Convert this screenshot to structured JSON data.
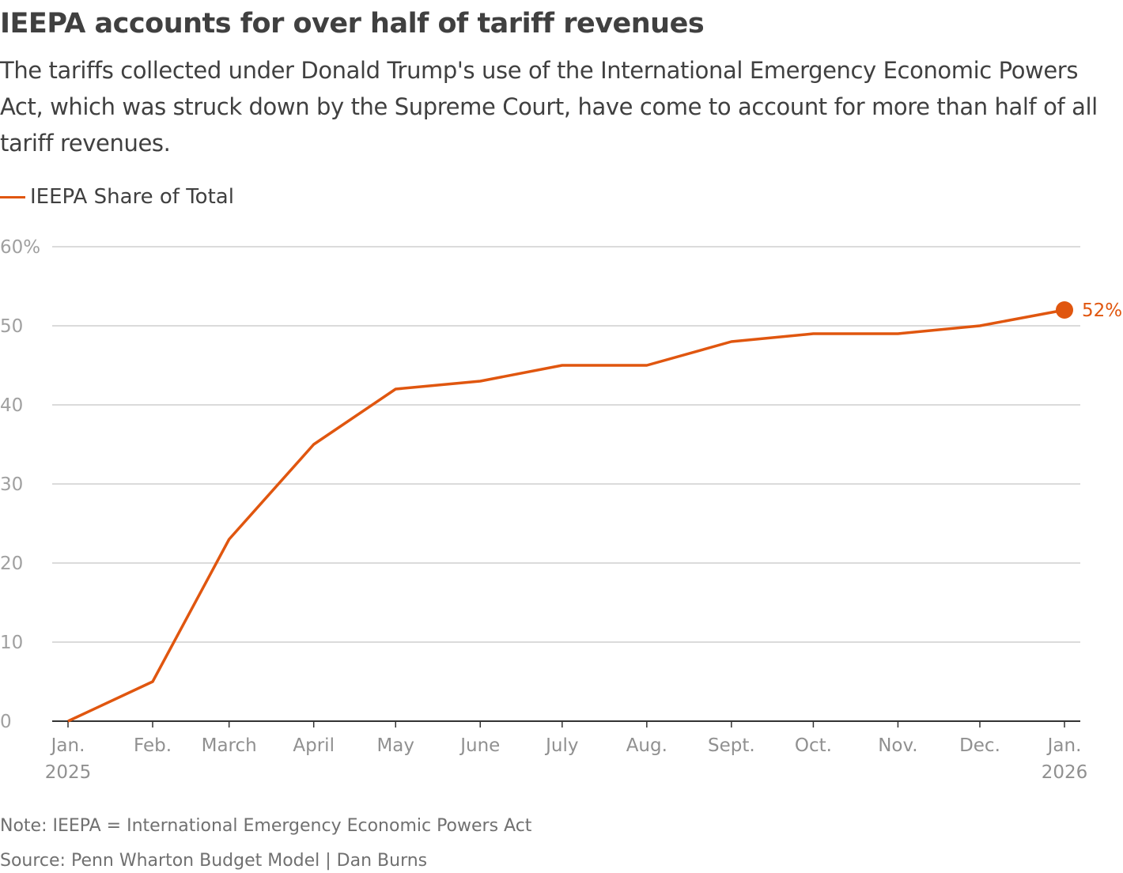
{
  "title": "IEEPA accounts for over half of tariff revenues",
  "subtitle": "The tariffs collected under Donald Trump's use of the International Emergency Economic Powers Act, which was struck down by the Supreme Court, have come to account for more than half of all tariff revenues.",
  "note": "Note: IEEPA = International Emergency Economic Powers Act",
  "source": "Source: Penn Wharton Budget Model | Dan Burns",
  "chart_data": {
    "type": "line",
    "title": "IEEPA accounts for over half of tariff revenues",
    "xlabel": "",
    "ylabel": "",
    "ylim": [
      0,
      60
    ],
    "yticks": [
      "0",
      "10",
      "20",
      "30",
      "40",
      "50",
      "60%"
    ],
    "xticks": [
      {
        "date": "2025-01-01",
        "label": "Jan.",
        "sub": "2025"
      },
      {
        "date": "2025-02-01",
        "label": "Feb.",
        "sub": ""
      },
      {
        "date": "2025-03-01",
        "label": "March",
        "sub": ""
      },
      {
        "date": "2025-04-01",
        "label": "April",
        "sub": ""
      },
      {
        "date": "2025-05-01",
        "label": "May",
        "sub": ""
      },
      {
        "date": "2025-06-01",
        "label": "June",
        "sub": ""
      },
      {
        "date": "2025-07-01",
        "label": "July",
        "sub": ""
      },
      {
        "date": "2025-08-01",
        "label": "Aug.",
        "sub": ""
      },
      {
        "date": "2025-09-01",
        "label": "Sept.",
        "sub": ""
      },
      {
        "date": "2025-10-01",
        "label": "Oct.",
        "sub": ""
      },
      {
        "date": "2025-11-01",
        "label": "Nov.",
        "sub": ""
      },
      {
        "date": "2025-12-01",
        "label": "Dec.",
        "sub": ""
      },
      {
        "date": "2026-01-01",
        "label": "Jan.",
        "sub": "2026"
      }
    ],
    "grid": true,
    "legend_position": "top-left",
    "series": [
      {
        "name": "IEEPA Share of Total",
        "color": "#e0560f",
        "x": [
          "2025-01-01",
          "2025-02-01",
          "2025-03-01",
          "2025-04-01",
          "2025-05-01",
          "2025-06-01",
          "2025-07-01",
          "2025-08-01",
          "2025-09-01",
          "2025-10-01",
          "2025-11-01",
          "2025-12-01",
          "2026-01-01"
        ],
        "y": [
          0,
          5,
          23,
          35,
          42,
          43,
          45,
          45,
          48,
          49,
          49,
          50,
          52
        ],
        "end_label": "52%"
      }
    ]
  }
}
